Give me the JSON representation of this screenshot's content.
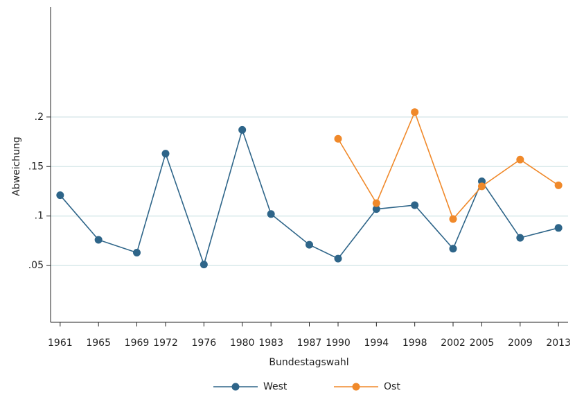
{
  "chart_data": {
    "type": "line",
    "x_label": "Bundestagswahl",
    "y_label": "Abweichung",
    "x": [
      1961,
      1965,
      1969,
      1972,
      1976,
      1980,
      1983,
      1987,
      1990,
      1994,
      1998,
      2002,
      2005,
      2009,
      2013
    ],
    "series": [
      {
        "name": "West",
        "color": "#2e6589",
        "values": [
          0.121,
          0.076,
          0.063,
          0.163,
          0.051,
          0.187,
          0.102,
          0.071,
          0.057,
          0.107,
          0.111,
          0.067,
          0.135,
          0.078,
          0.088
        ]
      },
      {
        "name": "Ost",
        "color": "#f0892a",
        "values": [
          null,
          null,
          null,
          null,
          null,
          null,
          null,
          null,
          0.178,
          0.113,
          0.205,
          0.097,
          0.13,
          0.157,
          0.131
        ]
      }
    ],
    "xlim": [
      1960,
      2014
    ],
    "xticks": [
      1961,
      1965,
      1969,
      1972,
      1976,
      1980,
      1983,
      1987,
      1990,
      1994,
      1998,
      2002,
      2005,
      2009,
      2013
    ],
    "ylim": [
      0,
      0.3
    ],
    "yticks": [
      {
        "value": 0.05,
        "label": ".05"
      },
      {
        "value": 0.1,
        "label": ".1"
      },
      {
        "value": 0.15,
        "label": ".15"
      },
      {
        "value": 0.2,
        "label": ".2"
      }
    ],
    "grid": true,
    "legend": "bottom"
  }
}
